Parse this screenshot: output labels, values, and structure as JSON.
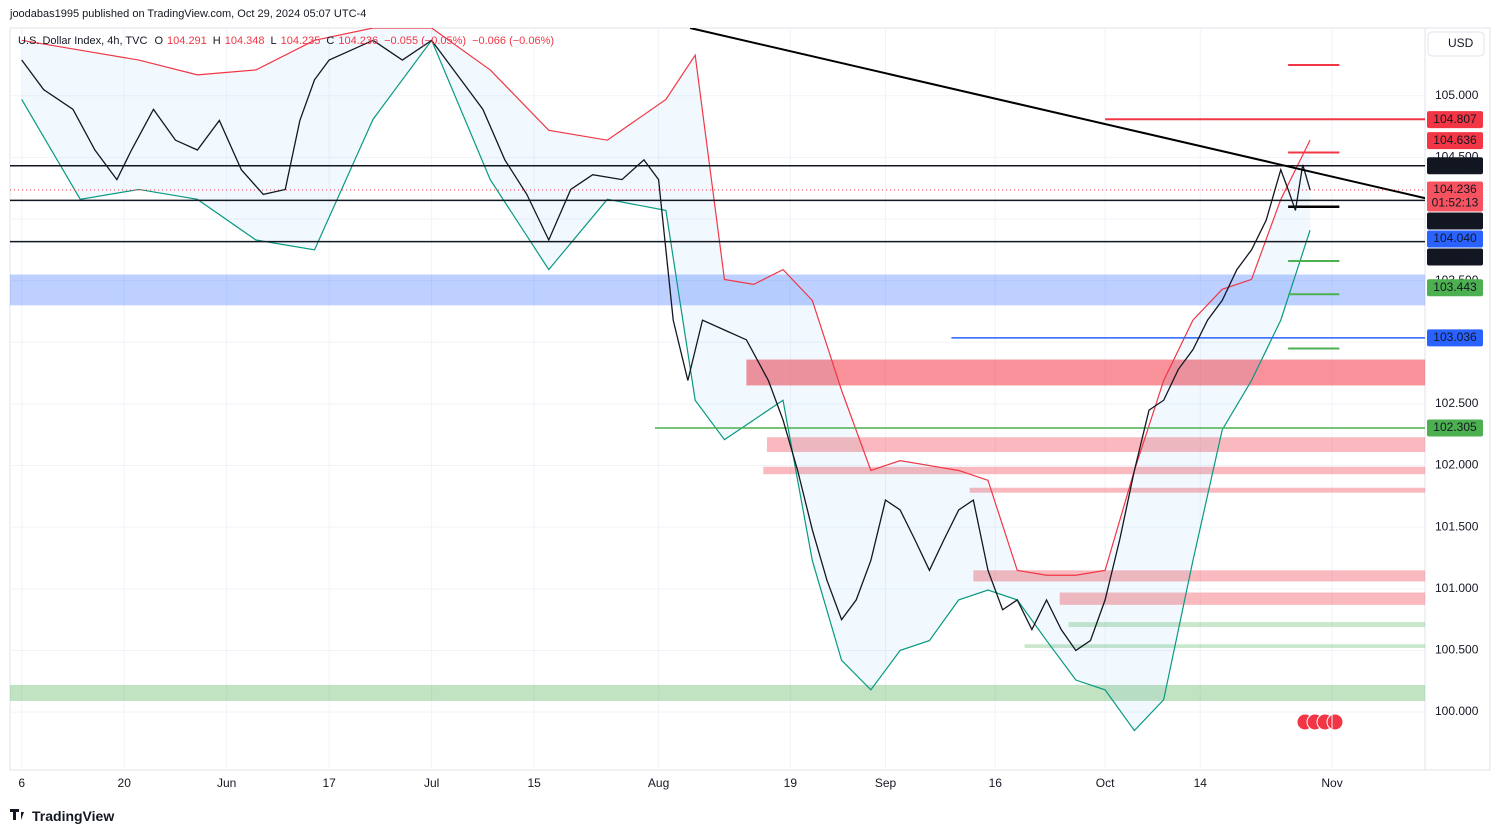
{
  "header": {
    "publisher": "joodabas1995 published on TradingView.com, Oct 29, 2024 05:07 UTC-4",
    "symbol": "U.S. Dollar Index, 4h, TVC",
    "ohlc": [
      {
        "key": "O",
        "value": 104.291
      },
      {
        "key": "H",
        "value": 104.348
      },
      {
        "key": "L",
        "value": 104.235
      },
      {
        "key": "C",
        "value": 104.236
      }
    ],
    "change": "−0.055 (−0.05%)",
    "change2": "−0.066 (−0.06%)",
    "currency": "USD",
    "brand": "TradingView"
  },
  "chart_data": {
    "type": "line",
    "xlim": [
      -1.6,
      191.7
    ],
    "ylim": [
      99.53,
      105.55
    ],
    "xticks": [
      {
        "value": 0,
        "label": "6"
      },
      {
        "value": 14,
        "label": "20"
      },
      {
        "value": 28,
        "label": "Jun"
      },
      {
        "value": 42,
        "label": "17"
      },
      {
        "value": 56,
        "label": "Jul"
      },
      {
        "value": 70,
        "label": "15"
      },
      {
        "value": 87,
        "label": "Aug"
      },
      {
        "value": 105,
        "label": "19"
      },
      {
        "value": 118,
        "label": "Sep"
      },
      {
        "value": 133,
        "label": "16"
      },
      {
        "value": 148,
        "label": "Oct"
      },
      {
        "value": 161,
        "label": "14"
      },
      {
        "value": 179,
        "label": "Nov"
      }
    ],
    "yticks": [
      {
        "value": 100,
        "label": "100.000"
      },
      {
        "value": 100.5,
        "label": "100.500"
      },
      {
        "value": 101,
        "label": "101.000"
      },
      {
        "value": 101.5,
        "label": "101.500"
      },
      {
        "value": 102,
        "label": "102.000"
      },
      {
        "value": 102.5,
        "label": "102.500"
      },
      {
        "value": 103,
        "label": "103.000"
      },
      {
        "value": 103.5,
        "label": "103.500"
      },
      {
        "value": 104,
        "label": "104.000"
      },
      {
        "value": 104.5,
        "label": "104.500"
      },
      {
        "value": 105,
        "label": "105.000"
      }
    ],
    "grid": true,
    "x": [
      0,
      3,
      7,
      10,
      13,
      15,
      18,
      21,
      24,
      27,
      30,
      33,
      36,
      38,
      40,
      42,
      45,
      48,
      52,
      56,
      60,
      63,
      66,
      69,
      72,
      75,
      78,
      82,
      85,
      87,
      89,
      91,
      93,
      96,
      99,
      102,
      104,
      106,
      108,
      110,
      112,
      114,
      116,
      118,
      120,
      122,
      124,
      126,
      128,
      130,
      132,
      134,
      136,
      138,
      140,
      142,
      144,
      146,
      148,
      150,
      152,
      154,
      156,
      158,
      160,
      162,
      164,
      166,
      168,
      170,
      172,
      173,
      174,
      175,
      176
    ],
    "series": [
      {
        "color": "#131722",
        "values": [
          105.29,
          105.05,
          104.89,
          104.56,
          104.32,
          104.56,
          104.89,
          104.64,
          104.56,
          104.8,
          104.4,
          104.2,
          104.24,
          104.8,
          105.13,
          105.29,
          105.37,
          105.45,
          105.29,
          105.45,
          105.13,
          104.89,
          104.48,
          104.2,
          103.83,
          104.24,
          104.36,
          104.32,
          104.48,
          104.32,
          103.18,
          102.69,
          103.18,
          103.1,
          103.02,
          102.69,
          102.37,
          101.96,
          101.48,
          101.07,
          100.75,
          100.91,
          101.23,
          101.72,
          101.64,
          101.4,
          101.15,
          101.4,
          101.64,
          101.72,
          101.15,
          100.83,
          100.91,
          100.67,
          100.91,
          100.67,
          100.5,
          100.58,
          100.91,
          101.4,
          101.96,
          102.45,
          102.53,
          102.78,
          102.94,
          103.18,
          103.34,
          103.59,
          103.75,
          103.99,
          104.4,
          104.24,
          104.07,
          104.44,
          104.236
        ]
      }
    ],
    "bands": {
      "x": [
        0,
        8,
        16,
        24,
        32,
        40,
        48,
        56,
        64,
        72,
        80,
        88,
        92,
        96,
        100,
        104,
        108,
        112,
        116,
        120,
        124,
        128,
        132,
        136,
        140,
        144,
        148,
        152,
        156,
        160,
        164,
        168,
        172,
        176
      ],
      "upper": [
        105.45,
        105.37,
        105.29,
        105.17,
        105.21,
        105.45,
        105.55,
        105.55,
        105.21,
        104.72,
        104.64,
        104.97,
        105.33,
        103.51,
        103.47,
        103.59,
        103.34,
        102.61,
        101.96,
        102.04,
        102.0,
        101.96,
        101.88,
        101.15,
        101.11,
        101.11,
        101.15,
        101.96,
        102.69,
        103.18,
        103.43,
        103.51,
        104.16,
        104.64
      ],
      "lower": [
        104.97,
        104.16,
        104.24,
        104.16,
        103.83,
        103.75,
        104.81,
        105.45,
        104.32,
        103.59,
        104.16,
        104.07,
        102.53,
        102.21,
        102.37,
        102.53,
        101.23,
        100.42,
        100.18,
        100.5,
        100.58,
        100.91,
        100.99,
        100.91,
        100.58,
        100.26,
        100.18,
        99.85,
        100.1,
        101.23,
        102.29,
        102.69,
        103.18,
        103.91
      ],
      "upper_color": "#f23645",
      "lower_color": "#089981",
      "fill": "rgba(33,150,243,0.06)"
    },
    "zones": [
      {
        "top": 103.55,
        "bottom": 103.3,
        "from": -1.6,
        "color": "rgba(41,98,255,0.3)"
      },
      {
        "top": 102.86,
        "bottom": 102.65,
        "from": 99,
        "color": "rgba(242,54,69,0.55)"
      },
      {
        "top": 102.23,
        "bottom": 102.11,
        "from": 101.8,
        "color": "rgba(242,54,69,0.35)"
      },
      {
        "top": 101.99,
        "bottom": 101.93,
        "from": 101.3,
        "color": "rgba(242,54,69,0.35)"
      },
      {
        "top": 101.82,
        "bottom": 101.78,
        "from": 129.5,
        "color": "rgba(242,54,69,0.35)"
      },
      {
        "top": 101.15,
        "bottom": 101.06,
        "from": 130,
        "color": "rgba(242,54,69,0.35)"
      },
      {
        "top": 100.97,
        "bottom": 100.87,
        "from": 141.8,
        "color": "rgba(242,54,69,0.35)"
      },
      {
        "top": 100.73,
        "bottom": 100.69,
        "from": 143,
        "color": "rgba(76,175,80,0.3)"
      },
      {
        "top": 100.55,
        "bottom": 100.52,
        "from": 137,
        "color": "rgba(76,175,80,0.3)"
      },
      {
        "top": 100.22,
        "bottom": 100.09,
        "from": -1.6,
        "color": "rgba(76,175,80,0.35)"
      }
    ],
    "levels": [
      {
        "value": 104.432,
        "from": -1.6,
        "to": 191.7,
        "color": "#131722",
        "width": 1.5
      },
      {
        "value": 104.151,
        "from": -1.6,
        "to": 191.7,
        "color": "#131722",
        "width": 1.5
      },
      {
        "value": 103.817,
        "from": -1.6,
        "to": 191.7,
        "color": "#131722",
        "width": 1.5
      },
      {
        "value": 105.25,
        "from": 173,
        "to": 180,
        "color": "#f23645",
        "width": 2
      },
      {
        "value": 104.81,
        "from": 148,
        "to": 191.7,
        "color": "#f23645",
        "width": 2
      },
      {
        "value": 104.54,
        "from": 173,
        "to": 180,
        "color": "#f23645",
        "width": 2
      },
      {
        "value": 104.1,
        "from": 173,
        "to": 180,
        "color": "#000000",
        "width": 2.5
      },
      {
        "value": 103.66,
        "from": 173,
        "to": 180,
        "color": "#4caf50",
        "width": 2
      },
      {
        "value": 103.39,
        "from": 173,
        "to": 180,
        "color": "#4caf50",
        "width": 2
      },
      {
        "value": 102.95,
        "from": 173,
        "to": 180,
        "color": "#4caf50",
        "width": 2
      },
      {
        "value": 103.036,
        "from": 127,
        "to": 191.7,
        "color": "#2962ff",
        "width": 1.5
      },
      {
        "value": 102.305,
        "from": 86.5,
        "to": 191.7,
        "color": "#4caf50",
        "width": 1.5
      }
    ],
    "current": {
      "value": 104.236,
      "color": "#f23645"
    },
    "trendline": {
      "x": [
        91.3,
        191.7
      ],
      "y": [
        105.55,
        104.17
      ],
      "color": "#000000"
    },
    "price_tags": [
      {
        "value": 104.807,
        "label": "104.807",
        "color": "#f23645"
      },
      {
        "value": 104.636,
        "label": "104.636",
        "color": "#f23645"
      },
      {
        "value": 104.432,
        "label": "104.432",
        "color": "#131722"
      },
      {
        "value": 104.236,
        "label": "104.236",
        "color": "#f7525f",
        "countdown": "01:52:13"
      },
      {
        "value": 104.151,
        "label": "104.151",
        "color": "#131722"
      },
      {
        "value": 104.04,
        "label": "104.040",
        "color": "#2962ff"
      },
      {
        "value": 103.817,
        "label": "103.817",
        "color": "#131722"
      },
      {
        "value": 103.443,
        "label": "103.443",
        "color": "#4caf50"
      },
      {
        "value": 103.036,
        "label": "103.036",
        "color": "#2962ff"
      },
      {
        "value": 102.305,
        "label": "102.305",
        "color": "#4caf50"
      }
    ]
  }
}
